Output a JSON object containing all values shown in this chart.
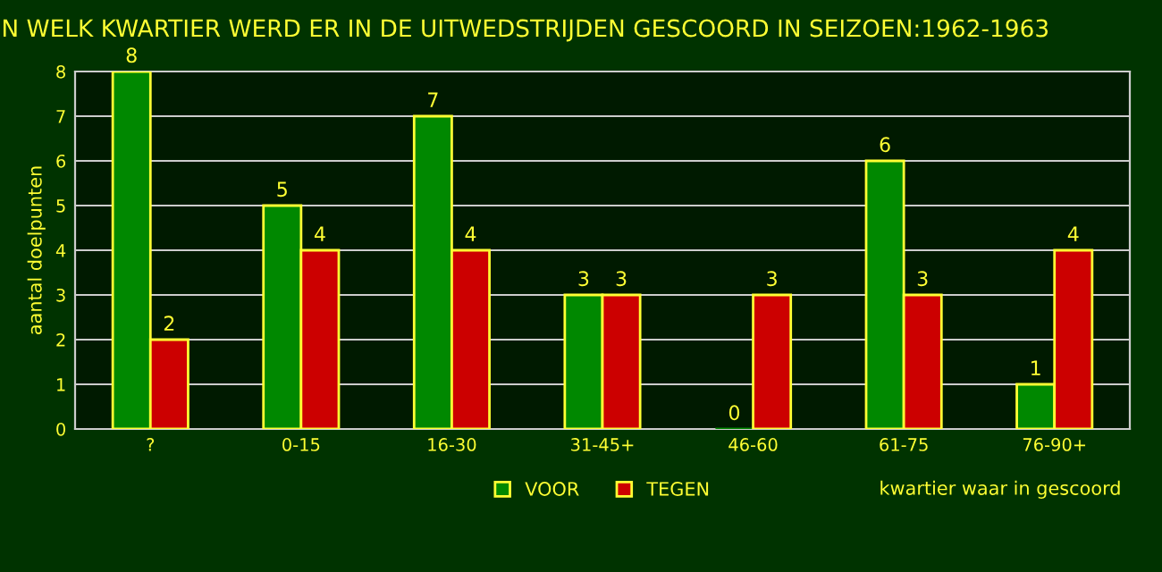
{
  "chart_data": {
    "type": "bar",
    "title": "N WELK KWARTIER WERD ER IN DE UITWEDSTRIJDEN GESCOORD IN SEIZOEN:1962-1963",
    "xlabel": "kwartier waar in gescoord",
    "ylabel": "aantal doelpunten",
    "categories": [
      "?",
      "0-15",
      "16-30",
      "31-45+",
      "46-60",
      "61-75",
      "76-90+"
    ],
    "series": [
      {
        "name": "VOOR",
        "color": "#008800",
        "values": [
          8,
          5,
          7,
          3,
          0,
          6,
          1
        ]
      },
      {
        "name": "TEGEN",
        "color": "#cc0000",
        "values": [
          2,
          4,
          4,
          3,
          3,
          3,
          4
        ]
      }
    ],
    "ylim": [
      0,
      8
    ],
    "yticks": [
      0,
      1,
      2,
      3,
      4,
      5,
      6,
      7,
      8
    ],
    "grid": "y",
    "legend": "bottom",
    "data_labels": true
  }
}
